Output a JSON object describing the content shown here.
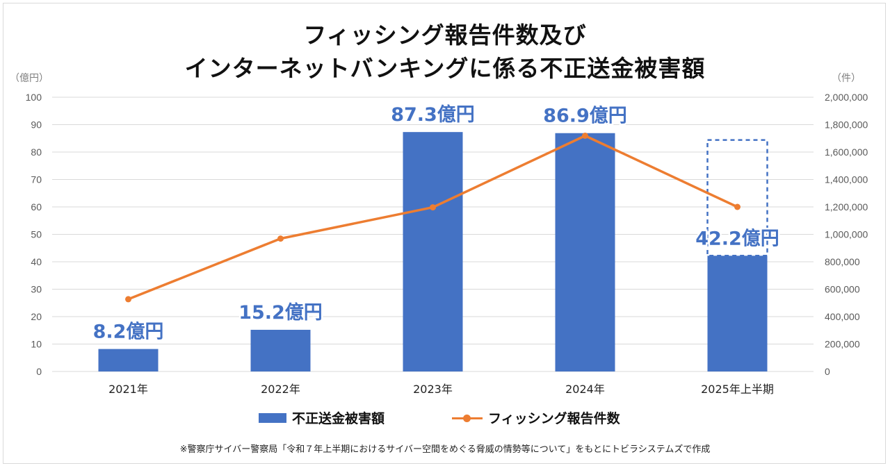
{
  "title_line1": "フィッシング報告件数及び",
  "title_line2": "インターネットバンキングに係る不正送金被害額",
  "left_unit": "（億円）",
  "right_unit": "（件）",
  "source": "※警察庁サイバー警察局「令和７年上半期におけるサイバー空間をめぐる脅威の情勢等について」をもとにトビラシステムズで作成",
  "colors": {
    "bar": "#4472c4",
    "line": "#ed7d31",
    "label": "#4472c4",
    "grid": "#d9d9d9",
    "axis_text": "#595959"
  },
  "chart_data": {
    "type": "bar",
    "categories": [
      "2021年",
      "2022年",
      "2023年",
      "2024年",
      "2025年上半期"
    ],
    "series": [
      {
        "name": "不正送金被害額",
        "type": "bar",
        "axis": "left",
        "values": [
          8.2,
          15.2,
          87.3,
          86.9,
          42.2
        ],
        "data_labels": [
          "8.2億円",
          "15.2億円",
          "87.3億円",
          "86.9億円",
          "42.2億円"
        ]
      },
      {
        "name": "フィッシング報告件数",
        "type": "line",
        "axis": "right",
        "values": [
          527000,
          969000,
          1197000,
          1719000,
          1200000
        ]
      }
    ],
    "left_axis": {
      "ylim": [
        0,
        100
      ],
      "ticks": [
        0,
        10,
        20,
        30,
        40,
        50,
        60,
        70,
        80,
        90,
        100
      ],
      "tick_labels": [
        "0",
        "10",
        "20",
        "30",
        "40",
        "50",
        "60",
        "70",
        "80",
        "90",
        "100"
      ]
    },
    "right_axis": {
      "ylim": [
        0,
        2000000
      ],
      "ticks": [
        0,
        200000,
        400000,
        600000,
        800000,
        1000000,
        1200000,
        1400000,
        1600000,
        1800000,
        2000000
      ],
      "tick_labels": [
        "0",
        "200,000",
        "400,000",
        "600,000",
        "800,000",
        "1,000,000",
        "1,200,000",
        "1,400,000",
        "1,600,000",
        "1,800,000",
        "2,000,000"
      ]
    },
    "annotations": [
      {
        "type": "dashed_box",
        "category": "2025年上半期",
        "from": 42.2,
        "to": 84.4,
        "axis": "left"
      }
    ],
    "grid": true,
    "legend_position": "bottom"
  }
}
